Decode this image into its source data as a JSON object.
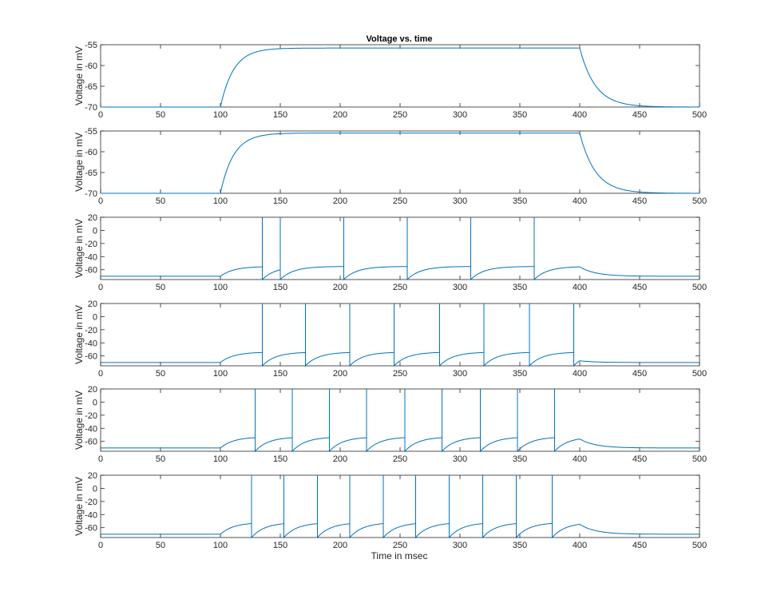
{
  "chart_data": {
    "type": "line",
    "title": "Voltage vs. time",
    "xlabel": "Time in msec",
    "line_color": "#0072BD",
    "xlim": [
      0,
      500
    ],
    "xticks": [
      0,
      50,
      100,
      150,
      200,
      250,
      300,
      350,
      400,
      450,
      500
    ],
    "panels": [
      {
        "ylabel": "Voltage in mV",
        "ylim": [
          -70,
          -55
        ],
        "yticks": [
          -55,
          -60,
          -65,
          -70
        ],
        "rest": -70,
        "plateau": -55.8,
        "tau_on": 11,
        "tau_off": 13,
        "stim_on": 100,
        "stim_off": 400,
        "spike_times": []
      },
      {
        "ylabel": "Voltage in mV",
        "ylim": [
          -70,
          -55
        ],
        "yticks": [
          -55,
          -60,
          -65,
          -70
        ],
        "rest": -70,
        "plateau": -55.5,
        "tau_on": 11,
        "tau_off": 13,
        "stim_on": 100,
        "stim_off": 400,
        "spike_times": []
      },
      {
        "ylabel": "Voltage in mV",
        "ylim": [
          -75,
          20
        ],
        "yticks": [
          20,
          0,
          -20,
          -40,
          -60
        ],
        "rest": -70,
        "plateau": -55,
        "tau_on": 11,
        "tau_off": 13,
        "stim_on": 100,
        "stim_off": 400,
        "spike_times": [
          135,
          150,
          203,
          256,
          309,
          362
        ],
        "spike_peak": 20,
        "reset": -75
      },
      {
        "ylabel": "Voltage in mV",
        "ylim": [
          -75,
          20
        ],
        "yticks": [
          20,
          0,
          -20,
          -40,
          -60
        ],
        "rest": -70,
        "plateau": -54,
        "tau_on": 11,
        "tau_off": 13,
        "stim_on": 100,
        "stim_off": 400,
        "spike_times": [
          135,
          171,
          208,
          245,
          283,
          320,
          358,
          395
        ],
        "spike_peak": 20,
        "reset": -75
      },
      {
        "ylabel": "Voltage in mV",
        "ylim": [
          -75,
          20
        ],
        "yticks": [
          20,
          0,
          -20,
          -40,
          -60
        ],
        "rest": -70,
        "plateau": -53,
        "tau_on": 11,
        "tau_off": 13,
        "stim_on": 100,
        "stim_off": 400,
        "spike_times": [
          129,
          160,
          191,
          222,
          254,
          285,
          317,
          348,
          379
        ],
        "spike_peak": 20,
        "reset": -75
      },
      {
        "ylabel": "Voltage in mV",
        "ylim": [
          -75,
          20
        ],
        "yticks": [
          20,
          0,
          -20,
          -40,
          -60
        ],
        "rest": -70,
        "plateau": -52,
        "tau_on": 11,
        "tau_off": 13,
        "stim_on": 100,
        "stim_off": 400,
        "spike_times": [
          126,
          153,
          181,
          208,
          236,
          263,
          291,
          319,
          347,
          377
        ],
        "spike_peak": 20,
        "reset": -75
      }
    ]
  }
}
